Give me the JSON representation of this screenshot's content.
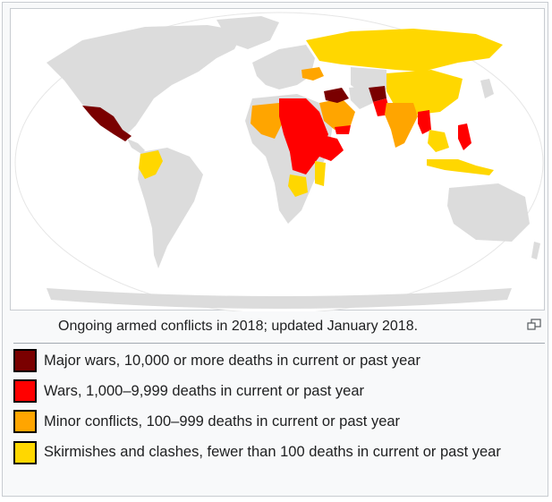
{
  "caption": "Ongoing armed conflicts in 2018; updated January 2018.",
  "colors": {
    "land": "#dcdcdc",
    "ocean": "#ffffff",
    "major": "#7a0000",
    "wars": "#ff0000",
    "minor": "#ffa500",
    "skirmish": "#ffd700"
  },
  "legend": [
    {
      "label": "Major wars, 10,000 or more deaths in current or past year",
      "color": "#7a0000"
    },
    {
      "label": "Wars, 1,000–9,999 deaths in current or past year",
      "color": "#ff0000"
    },
    {
      "label": "Minor conflicts, 100–999 deaths in current or past year",
      "color": "#ffa500"
    },
    {
      "label": "Skirmishes and clashes, fewer than 100 deaths in current or past year",
      "color": "#ffd700"
    }
  ],
  "icons": {
    "enlarge": "magnify-icon"
  }
}
